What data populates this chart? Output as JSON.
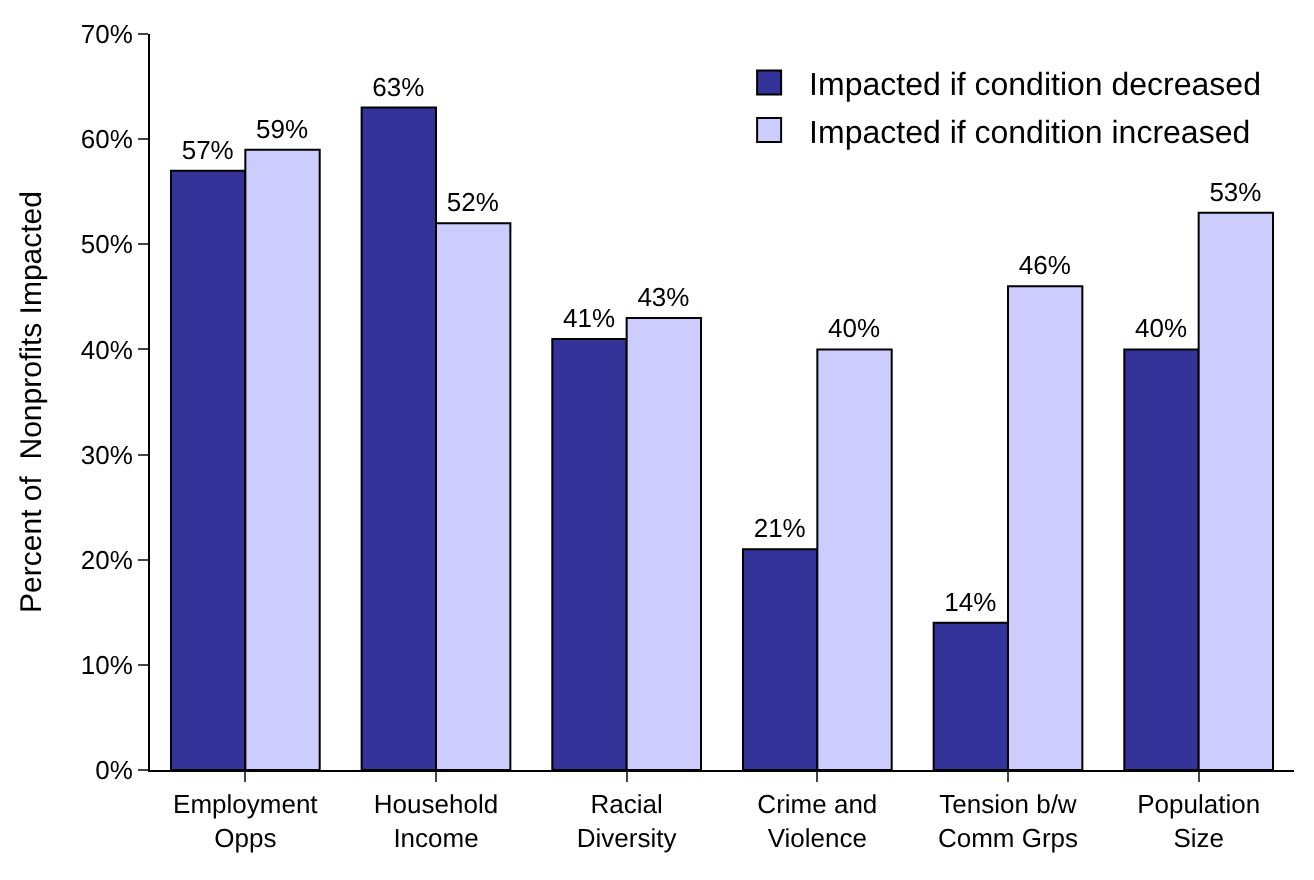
{
  "chart_data": {
    "type": "bar",
    "ylabel": "Percent of  Nonprofits Impacted",
    "categories": [
      "Employment\nOpps",
      "Household\nIncome",
      "Racial\nDiversity",
      "Crime and\nViolence",
      "Tension b/w\nComm Grps",
      "Population\nSize"
    ],
    "series": [
      {
        "name": "Impacted if condition decreased",
        "color": "#333399",
        "values": [
          57,
          63,
          41,
          21,
          14,
          40
        ],
        "value_labels": [
          "57%",
          "63%",
          "41%",
          "21%",
          "14%",
          "40%"
        ]
      },
      {
        "name": "Impacted if condition increased",
        "color": "#ccccff",
        "values": [
          59,
          52,
          43,
          40,
          46,
          53
        ],
        "value_labels": [
          "59%",
          "52%",
          "43%",
          "40%",
          "46%",
          "53%"
        ]
      }
    ],
    "ylim": [
      0,
      70
    ],
    "yticks": [
      {
        "value": 0,
        "label": "0%"
      },
      {
        "value": 10,
        "label": "10%"
      },
      {
        "value": 20,
        "label": "20%"
      },
      {
        "value": 30,
        "label": "30%"
      },
      {
        "value": 40,
        "label": "40%"
      },
      {
        "value": 50,
        "label": "50%"
      },
      {
        "value": 60,
        "label": "60%"
      },
      {
        "value": 70,
        "label": "70%"
      }
    ],
    "legend": "top right"
  }
}
